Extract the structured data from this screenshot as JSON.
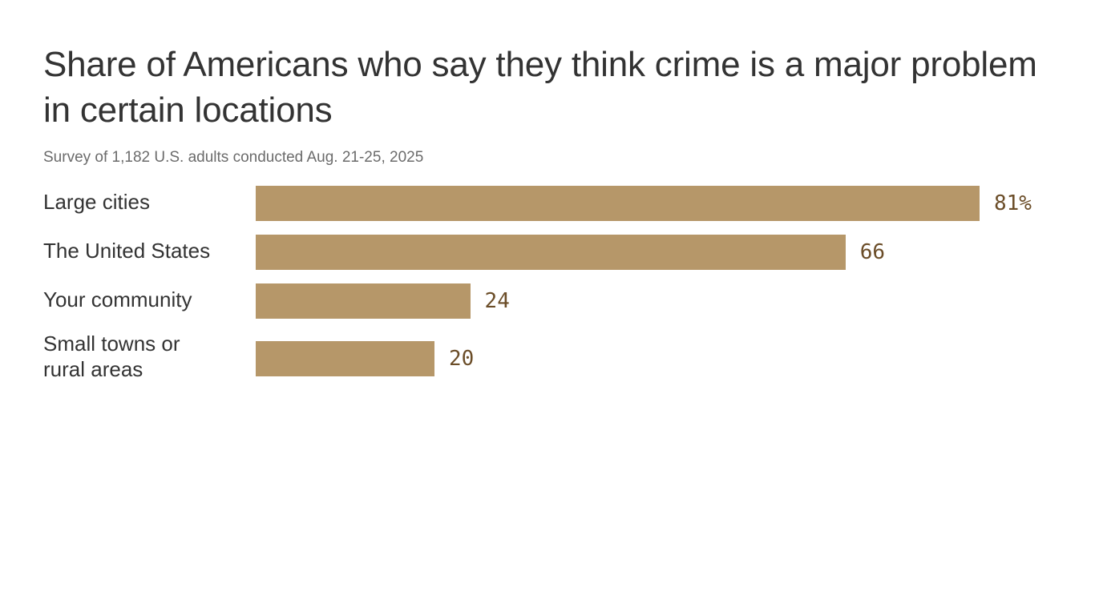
{
  "chart_data": {
    "type": "bar",
    "orientation": "horizontal",
    "title": "Share of Americans who say they think crime is a major problem in certain locations",
    "subtitle": "Survey of 1,182 U.S. adults conducted Aug. 21-25, 2025",
    "categories": [
      "Large cities",
      "The United States",
      "Your community",
      "Small towns or rural areas"
    ],
    "values": [
      81,
      66,
      24,
      20
    ],
    "value_labels": [
      "81%",
      "66",
      "24",
      "20"
    ],
    "unit": "%",
    "xlim": [
      0,
      100
    ],
    "xlabel": "",
    "ylabel": "",
    "grid": false,
    "bar_color": "#b69769",
    "value_label_color": "#6b4d28"
  }
}
